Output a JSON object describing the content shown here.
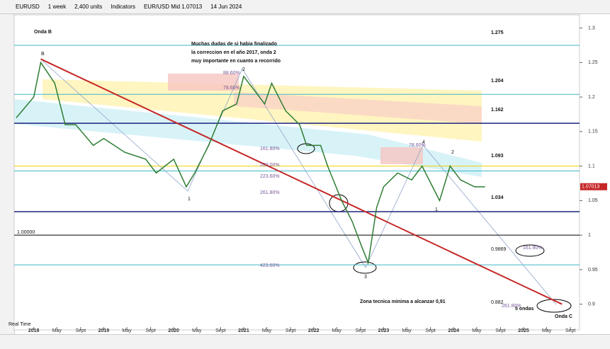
{
  "toolbar": {
    "symbol": "EURUSD",
    "interval": "1 week",
    "units": "2,400 units",
    "indicators": "Indicators",
    "quote": "EUR/USD Mid 1.07013",
    "date": "14 Jun 2024",
    "corner": "W"
  },
  "chart_data": {
    "type": "line",
    "x": [
      2017.75,
      2018.0,
      2018.1,
      2018.3,
      2018.45,
      2018.6,
      2018.85,
      2019.0,
      2019.3,
      2019.6,
      2019.75,
      2020.0,
      2020.18,
      2020.3,
      2020.5,
      2020.7,
      2020.9,
      2021.0,
      2021.3,
      2021.4,
      2021.6,
      2021.8,
      2021.9,
      2022.1,
      2022.2,
      2022.4,
      2022.55,
      2022.7,
      2022.78,
      2022.9,
      2023.0,
      2023.2,
      2023.4,
      2023.55,
      2023.7,
      2023.8,
      2023.95,
      2024.1,
      2024.3,
      2024.45
    ],
    "values": [
      1.17,
      1.2,
      1.25,
      1.22,
      1.16,
      1.16,
      1.13,
      1.14,
      1.12,
      1.11,
      1.09,
      1.11,
      1.07,
      1.09,
      1.13,
      1.18,
      1.19,
      1.23,
      1.19,
      1.22,
      1.18,
      1.16,
      1.13,
      1.13,
      1.1,
      1.05,
      1.02,
      0.98,
      0.96,
      1.04,
      1.07,
      1.09,
      1.08,
      1.1,
      1.07,
      1.05,
      1.1,
      1.08,
      1.07,
      1.07
    ],
    "color": "#2e7d32",
    "xlim": [
      2017.72,
      2025.8
    ],
    "ylim": [
      0.871,
      1.318
    ],
    "xticks": [
      {
        "value": 2018,
        "label": "2018"
      },
      {
        "value": 2018.33,
        "label": "May"
      },
      {
        "value": 2018.67,
        "label": "Sept"
      },
      {
        "value": 2019,
        "label": "2019"
      },
      {
        "value": 2019.33,
        "label": "May"
      },
      {
        "value": 2019.67,
        "label": "Sept"
      },
      {
        "value": 2020,
        "label": "2020"
      },
      {
        "value": 2020.33,
        "label": "May"
      },
      {
        "value": 2020.67,
        "label": "Sept"
      },
      {
        "value": 2021,
        "label": "2021"
      },
      {
        "value": 2021.33,
        "label": "May"
      },
      {
        "value": 2021.67,
        "label": "Sept"
      },
      {
        "value": 2022,
        "label": "2022"
      },
      {
        "value": 2022.33,
        "label": "May"
      },
      {
        "value": 2022.67,
        "label": "Sept"
      },
      {
        "value": 2023,
        "label": "2023"
      },
      {
        "value": 2023.33,
        "label": "May"
      },
      {
        "value": 2023.67,
        "label": "Sept"
      },
      {
        "value": 2024,
        "label": "2024"
      },
      {
        "value": 2024.33,
        "label": "May"
      },
      {
        "value": 2024.67,
        "label": "Sept"
      },
      {
        "value": 2025,
        "label": "2025"
      },
      {
        "value": 2025.33,
        "label": "May"
      },
      {
        "value": 2025.67,
        "label": "Sept"
      }
    ],
    "yticks": [
      {
        "value": 1.3,
        "label": "1.3"
      },
      {
        "value": 1.25,
        "label": "1.25"
      },
      {
        "value": 1.2,
        "label": "1.2"
      },
      {
        "value": 1.15,
        "label": "1.15"
      },
      {
        "value": 1.1,
        "label": "1.1"
      },
      {
        "value": 1.05,
        "label": "1.05"
      },
      1,
      {
        "value": 0.95,
        "label": "0.95"
      },
      {
        "value": 0.9,
        "label": "0.9"
      }
    ],
    "last_price": {
      "value": 1.07013,
      "label": "1.07013"
    },
    "levels": [
      {
        "value": 1.275,
        "color": "#3fb8c8"
      },
      {
        "value": 1.204,
        "color": "#3fb8c8"
      },
      {
        "value": 1.162,
        "color": "#1a237e"
      },
      {
        "value": 1.1,
        "color": "#f0d000"
      },
      {
        "value": 1.093,
        "color": "#3fb8c8"
      },
      {
        "value": 1.034,
        "color": "#1a237e"
      },
      {
        "value": 1.0,
        "color": "#000000"
      },
      {
        "value": 0.957,
        "color": "#3fb8c8"
      }
    ],
    "trendline": {
      "x": [
        2018.1,
        2025.55
      ],
      "values": [
        1.255,
        0.9
      ],
      "color": "#c62828"
    },
    "annotations": [
      "Onda B",
      "Muchas dudas de si habia finalizado",
      "la correccion en el año 2017, onda 2",
      "muy importante en cuanto a recorrido",
      "Zona tecnica minima a alcanzar 0,91",
      "5 ondas",
      "Onda C",
      "B",
      "2",
      "3",
      "4",
      "1",
      "2",
      "1",
      "1.275",
      "1.204",
      "1.162",
      "1.093",
      "1.034",
      "1.00000",
      "0.9869",
      "0.882",
      "161.80%",
      "200.00%",
      "223.60%",
      "261.80%",
      "423.60%",
      "161.80%",
      "261.80%",
      "88.60%",
      "78.60%",
      "78.60%",
      "Real Time"
    ]
  }
}
